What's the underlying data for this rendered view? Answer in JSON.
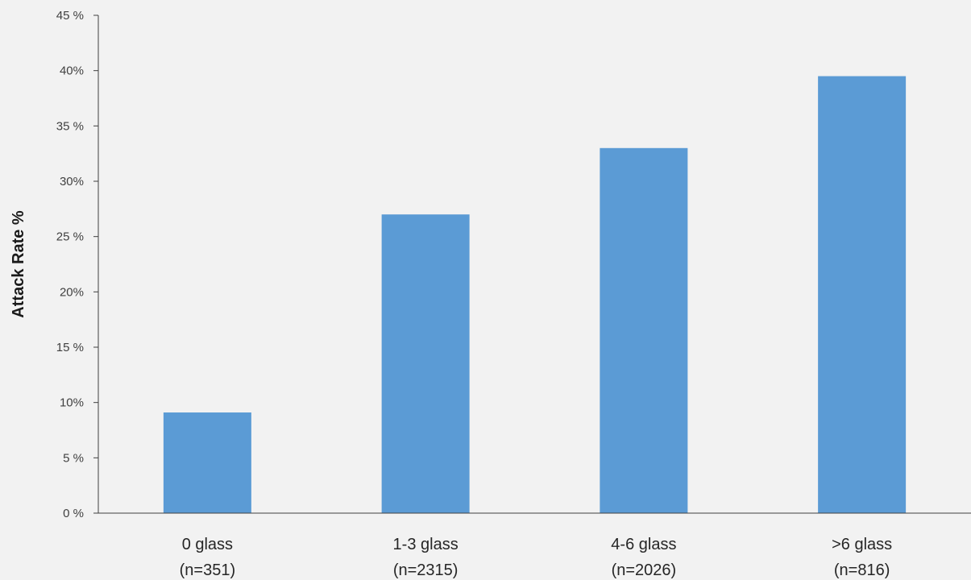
{
  "chart_data": {
    "type": "bar",
    "title": "",
    "xlabel": "",
    "ylabel": "Attack Rate %",
    "categories": [
      [
        "0 glass",
        "(n=351)"
      ],
      [
        "1-3 glass",
        "(n=2315)"
      ],
      [
        "4-6 glass",
        "(n=2026)"
      ],
      [
        ">6 glass",
        "(n=816)"
      ]
    ],
    "values": [
      9.1,
      27.0,
      33.0,
      39.5
    ],
    "ylim": [
      0,
      45
    ],
    "yticks": [
      0,
      5,
      10,
      15,
      20,
      25,
      30,
      35,
      40,
      45
    ],
    "ytick_labels": [
      "0 %",
      "5 %",
      "10%",
      "15 %",
      "20%",
      "25 %",
      "30%",
      "35 %",
      "40%",
      "45 %"
    ],
    "grid": false,
    "legend": "none",
    "colors": {
      "bar": "#5b9bd5",
      "axis": "#404040",
      "background": "#f2f2f2"
    }
  }
}
